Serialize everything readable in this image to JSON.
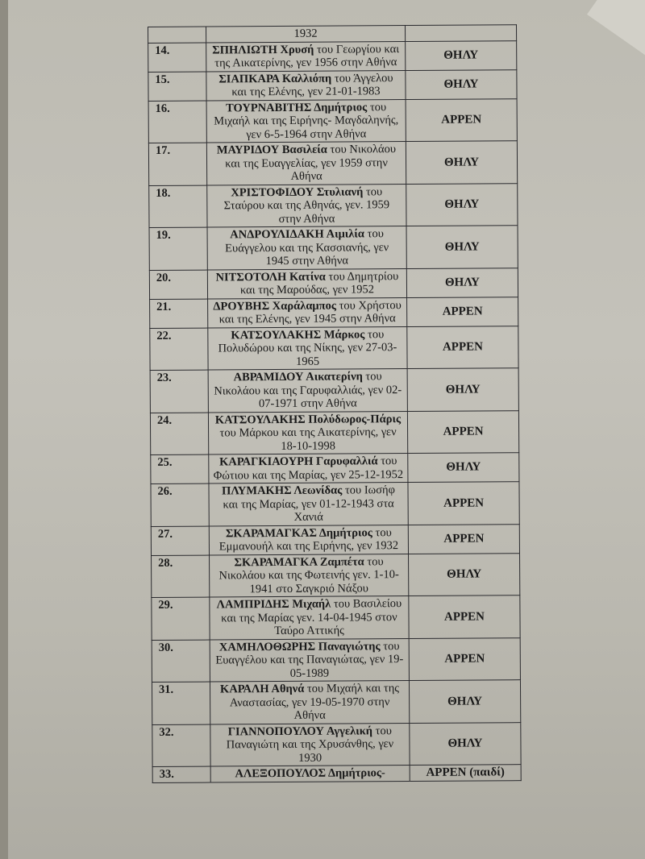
{
  "first_row": {
    "text": "1932",
    "sex": ""
  },
  "rows": [
    {
      "num": "14.",
      "name": "ΣΠΗΛΙΩΤΗ Χρυσή",
      "text": " του Γεωργίου και\nτης Αικατερίνης, γεν 1956 στην Αθήνα",
      "sex": "ΘΗΛΥ"
    },
    {
      "num": "15.",
      "name": "ΣΙΑΠΚΑΡΑ Καλλιόπη",
      "text": " του Άγγελου\nκαι της Ελένης, γεν 21-01-1983",
      "sex": "ΘΗΛΥ"
    },
    {
      "num": "16.",
      "name": "ΤΟΥΡΝΑΒΙΤΗΣ Δημήτριος",
      "text": " του\nΜιχαήλ και της Ειρήνης- Μαγδαληνής,\nγεν 6-5-1964 στην Αθήνα",
      "sex": "ΑΡΡΕΝ"
    },
    {
      "num": "17.",
      "name": "ΜΑΥΡΙΔΟΥ Βασιλεία",
      "text": " του Νικολάου\nκαι της Ευαγγελίας, γεν 1959 στην\nΑθήνα",
      "sex": "ΘΗΛΥ"
    },
    {
      "num": "18.",
      "name": "ΧΡΙΣΤΟΦΙΔΟΥ Στυλιανή",
      "text": " του\nΣταύρου και της Αθηνάς, γεν. 1959\nστην Αθήνα",
      "sex": "ΘΗΛΥ"
    },
    {
      "num": "19.",
      "name": "ΑΝΔΡΟΥΛΙΔΑΚΗ Αιμιλία",
      "text": " του\nΕυάγγελου και της Κασσιανής, γεν\n1945 στην Αθήνα",
      "sex": "ΘΗΛΥ"
    },
    {
      "num": "20.",
      "name": "ΝΙΤΣΟΤΟΛΗ Κατίνα",
      "text": " του Δημητρίου\nκαι της Μαρούδας, γεν 1952",
      "sex": "ΘΗΛΥ"
    },
    {
      "num": "21.",
      "name": "ΔΡΟΥΒΗΣ Χαράλαμπος",
      "text": " του Χρήστου\nκαι της Ελένης, γεν 1945 στην Αθήνα",
      "sex": "ΑΡΡΕΝ"
    },
    {
      "num": "22.",
      "name": "ΚΑΤΣΟΥΛΑΚΗΣ Μάρκος",
      "text": " του\nΠολυδώρου και της Νίκης, γεν 27-03-\n1965",
      "sex": "ΑΡΡΕΝ"
    },
    {
      "num": "23.",
      "name": "ΑΒΡΑΜΙΔΟΥ Αικατερίνη",
      "text": " του\nΝικολάου και της Γαρυφαλλιάς, γεν 02-\n07-1971 στην Αθήνα",
      "sex": "ΘΗΛΥ"
    },
    {
      "num": "24.",
      "name": "ΚΑΤΣΟΥΛΑΚΗΣ Πολύδωρος-Πάρις",
      "text": "\nτου Μάρκου και της Αικατερίνης, γεν\n18-10-1998",
      "sex": "ΑΡΡΕΝ"
    },
    {
      "num": "25.",
      "name": "ΚΑΡΑΓΚΙΑΟΥΡΗ Γαρυφαλλιά",
      "text": " του\nΦώτιου και της Μαρίας, γεν 25-12-1952",
      "sex": "ΘΗΛΥ"
    },
    {
      "num": "26.",
      "name": "ΠΛΥΜΑΚΗΣ Λεωνίδας",
      "text": " του Ιωσήφ\nκαι της Μαρίας, γεν 01-12-1943 στα\nΧανιά",
      "sex": "ΑΡΡΕΝ"
    },
    {
      "num": "27.",
      "name": "ΣΚΑΡΑΜΑΓΚΑΣ Δημήτριος",
      "text": " του\nΕμμανουήλ και της Ειρήνης, γεν 1932",
      "sex": "ΑΡΡΕΝ"
    },
    {
      "num": "28.",
      "name": "ΣΚΑΡΑΜΑΓΚΑ Ζαμπέτα",
      "text": " του\nΝικολάου και της Φωτεινής γεν. 1-10-\n1941 στο Σαγκριό Νάξου",
      "sex": "ΘΗΛΥ"
    },
    {
      "num": "29.",
      "name": "ΛΑΜΠΡΙΔΗΣ Μιχαήλ",
      "text": " του Βασιλείου\nκαι της Μαρίας γεν. 14-04-1945 στον\nΤαύρο Αττικής",
      "sex": "ΑΡΡΕΝ"
    },
    {
      "num": "30.",
      "name": "ΧΑΜΗΛΟΘΩΡΗΣ Παναγιώτης",
      "text": " του\nΕυαγγέλου και της Παναγιώτας, γεν 19-\n05-1989",
      "sex": "ΑΡΡΕΝ"
    },
    {
      "num": "31.",
      "name": "ΚΑΡΑΛΗ Αθηνά",
      "text": " του Μιχαήλ και της\nΑναστασίας, γεν 19-05-1970 στην\nΑθήνα",
      "sex": "ΘΗΛΥ"
    },
    {
      "num": "32.",
      "name": "ΓΙΑΝΝΟΠΟΥΛΟΥ Αγγελική",
      "text": " του\nΠαναγιώτη και της Χρυσάνθης, γεν\n1930",
      "sex": "ΘΗΛΥ"
    },
    {
      "num": "33.",
      "name": "ΑΛΕΞΟΠΟΥΛΟΣ Δημήτριος-",
      "text": "",
      "sex": "ΑΡΡΕΝ (παιδί)"
    }
  ]
}
